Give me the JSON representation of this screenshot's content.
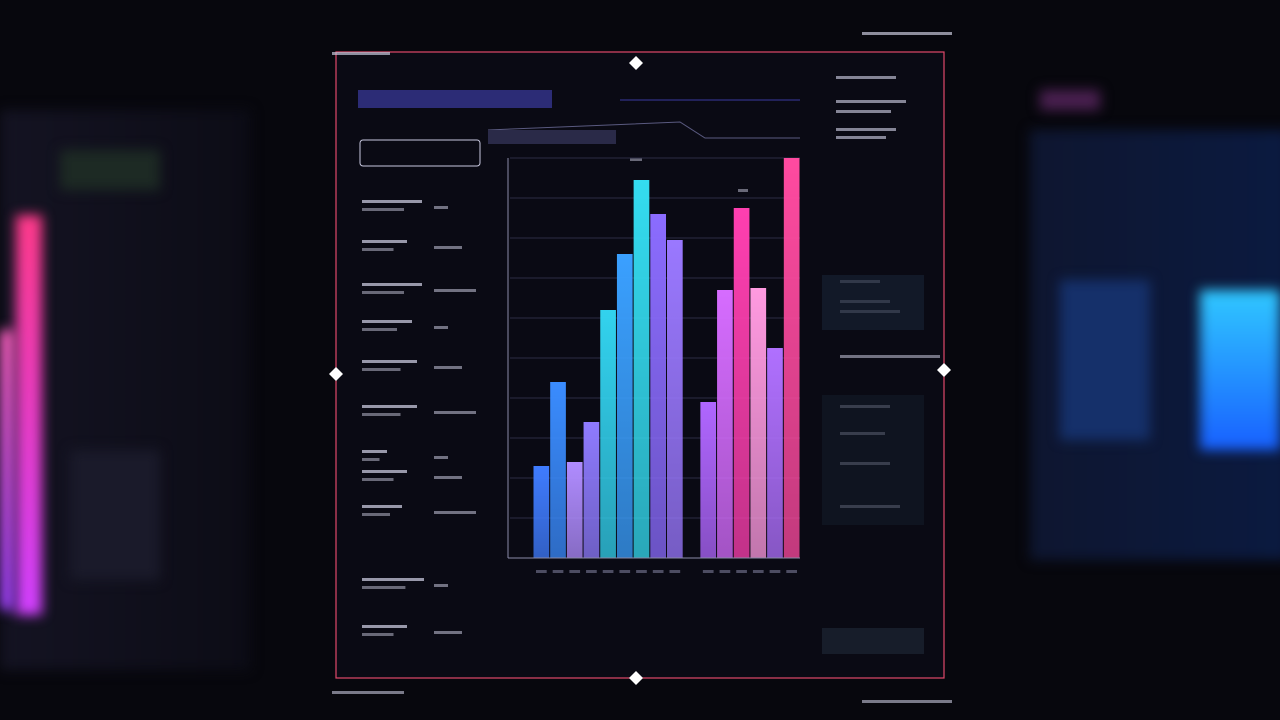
{
  "chart_data": {
    "type": "bar",
    "values": [
      23,
      44,
      24,
      34,
      62,
      76,
      94.5,
      86,
      79.5,
      null,
      39,
      67,
      87.5,
      67.5,
      52.5,
      100
    ],
    "colors": [
      "#3f7cff",
      "#3a8cff",
      "#b08cff",
      "#8f7bff",
      "#32d2ee",
      "#3aa0ff",
      "#34dcf0",
      "#8b6cff",
      "#9a78ff",
      null,
      "#b066ff",
      "#d66cff",
      "#ff3fb0",
      "#ff9ae0",
      "#b070ff",
      "#ff4aa0"
    ],
    "ylim": [
      0,
      100
    ],
    "yticks": [
      0,
      10,
      20,
      30,
      40,
      50,
      60,
      70,
      80,
      90,
      100
    ],
    "grid": true
  }
}
